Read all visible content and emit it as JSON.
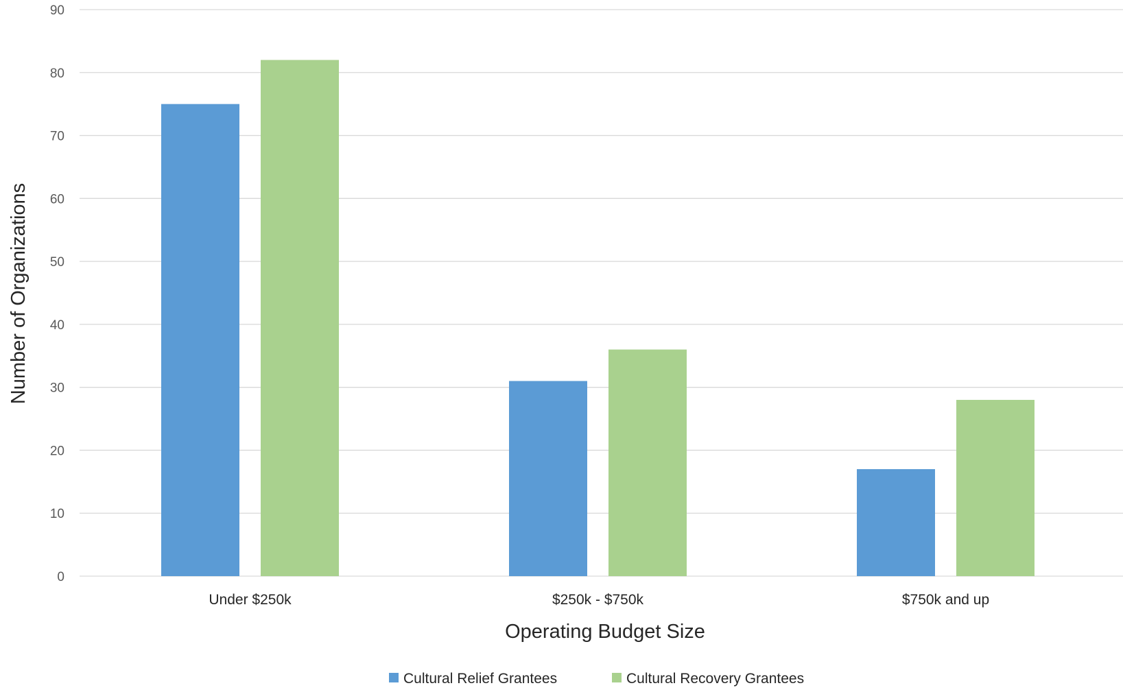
{
  "chart_data": {
    "type": "bar",
    "categories": [
      "Under $250k",
      "$250k - $750k",
      "$750k and up"
    ],
    "series": [
      {
        "name": "Cultural Relief Grantees",
        "values": [
          75,
          31,
          17
        ],
        "color": "#5b9bd5"
      },
      {
        "name": "Cultural Recovery Grantees",
        "values": [
          82,
          36,
          28
        ],
        "color": "#a9d18e"
      }
    ],
    "xlabel": "Operating Budget Size",
    "ylabel": "Number of Organizations",
    "ylim": [
      0,
      90
    ],
    "yticks": [
      0,
      10,
      20,
      30,
      40,
      50,
      60,
      70,
      80,
      90
    ],
    "grid": true,
    "legend_position": "bottom"
  }
}
